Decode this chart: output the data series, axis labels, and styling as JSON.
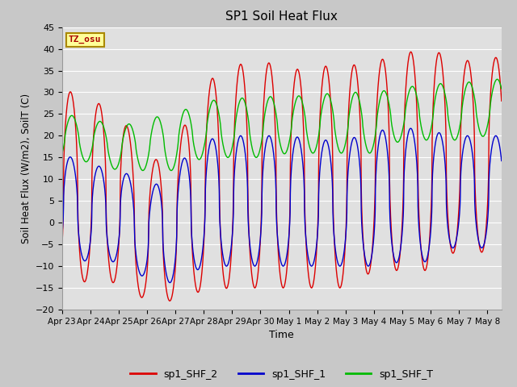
{
  "title": "SP1 Soil Heat Flux",
  "xlabel": "Time",
  "ylabel": "Soil Heat Flux (W/m2), SoilT (C)",
  "ylim": [
    -20,
    45
  ],
  "fig_facecolor": "#c8c8c8",
  "ax_facecolor": "#e0e0e0",
  "grid_color": "white",
  "line_colors": {
    "sp1_SHF_2": "#dd0000",
    "sp1_SHF_1": "#0000cc",
    "sp1_SHF_T": "#00bb00"
  },
  "tz_label": "TZ_osu",
  "tz_box_color": "#ffff99",
  "tz_text_color": "#aa0000",
  "tz_border_color": "#aa8800",
  "tick_labels": [
    "Apr 23",
    "Apr 24",
    "Apr 25",
    "Apr 26",
    "Apr 27",
    "Apr 28",
    "Apr 29",
    "Apr 30",
    "May 1",
    "May 2",
    "May 3",
    "May 4",
    "May 5",
    "May 6",
    "May 7",
    "May 8"
  ],
  "yticks": [
    -20,
    -15,
    -10,
    -5,
    0,
    5,
    10,
    15,
    20,
    25,
    30,
    35,
    40,
    45
  ],
  "n_days": 15.5,
  "samples_per_day": 144
}
